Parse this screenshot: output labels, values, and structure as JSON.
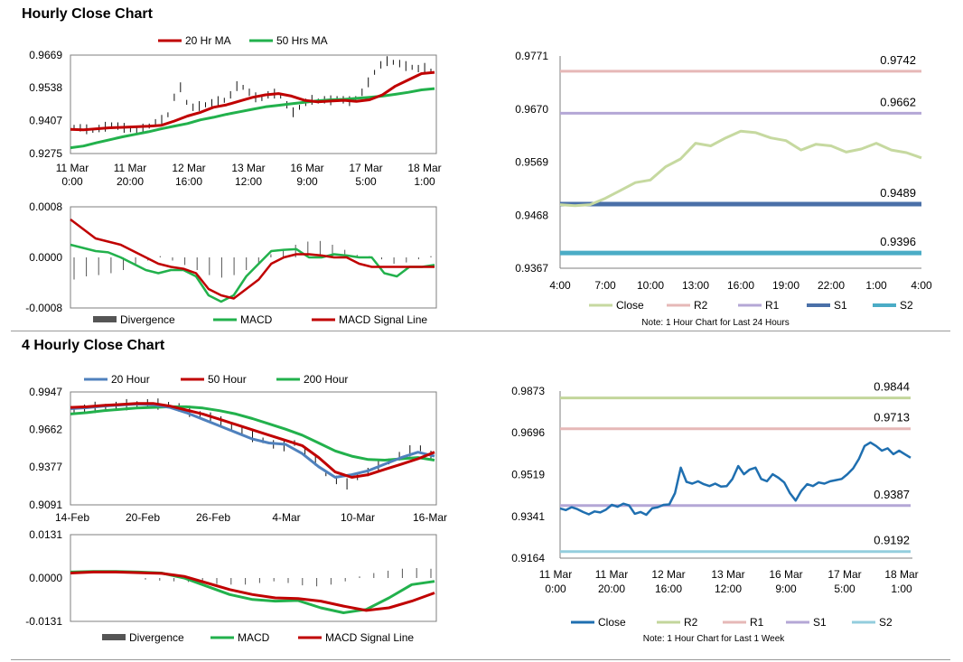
{
  "page": {
    "hourly_title": "Hourly Close Chart",
    "four_hourly_title": "4 Hourly Close Chart"
  },
  "colors": {
    "ma_red": "#c00000",
    "ma_green": "#22b14c",
    "ma_blue": "#4f81bd",
    "close_light": "#c6d9a0",
    "close_blue": "#1f6fb0",
    "r2_pink": "#e6b8b7",
    "r1_purple": "#b4a7d6",
    "s1_navy": "#4a70a8",
    "s2_teal": "#4bacc6",
    "r2_green": "#c3d69b",
    "s2_light": "#93cddd",
    "bars": "#555555",
    "axis": "#7f7f7f"
  },
  "chart_data": [
    {
      "id": "hourly_price",
      "type": "line",
      "ylim": [
        0.9275,
        0.9669
      ],
      "yticks": [
        "0.9669",
        "0.9538",
        "0.9407",
        "0.9275"
      ],
      "xticks": [
        [
          "11 Mar",
          "0:00"
        ],
        [
          "11 Mar",
          "20:00"
        ],
        [
          "12 Mar",
          "16:00"
        ],
        [
          "13 Mar",
          "12:00"
        ],
        [
          "16 Mar",
          "9:00"
        ],
        [
          "17 Mar",
          "5:00"
        ],
        [
          "18 Mar",
          "1:00"
        ]
      ],
      "legend": [
        "20 Hr MA",
        "50 Hrs MA"
      ],
      "price": [
        0.938,
        0.9378,
        0.9372,
        0.9368,
        0.9375,
        0.9382,
        0.939,
        0.9385,
        0.9378,
        0.937,
        0.9366,
        0.9375,
        0.9385,
        0.9398,
        0.941,
        0.943,
        0.95,
        0.954,
        0.948,
        0.946,
        0.9465,
        0.947,
        0.9478,
        0.9485,
        0.9488,
        0.951,
        0.9545,
        0.954,
        0.952,
        0.95,
        0.9495,
        0.951,
        0.9515,
        0.9505,
        0.947,
        0.944,
        0.946,
        0.948,
        0.949,
        0.9485,
        0.949,
        0.9488,
        0.9495,
        0.949,
        0.9485,
        0.9495,
        0.952,
        0.956,
        0.96,
        0.963,
        0.9645,
        0.964,
        0.9635,
        0.9625,
        0.962,
        0.9615,
        0.9618,
        0.9605
      ],
      "series": [
        {
          "name": "20 Hr MA",
          "values": [
            0.9372,
            0.937,
            0.9374,
            0.9378,
            0.938,
            0.9382,
            0.9384,
            0.9388,
            0.9405,
            0.9425,
            0.944,
            0.946,
            0.947,
            0.9485,
            0.95,
            0.951,
            0.9515,
            0.9505,
            0.9488,
            0.9482,
            0.9485,
            0.9488,
            0.9484,
            0.949,
            0.951,
            0.9545,
            0.957,
            0.9595,
            0.96
          ]
        },
        {
          "name": "50 Hrs MA",
          "values": [
            0.9298,
            0.9305,
            0.9318,
            0.933,
            0.9342,
            0.9352,
            0.9362,
            0.9374,
            0.9385,
            0.9395,
            0.941,
            0.942,
            0.9432,
            0.9442,
            0.9452,
            0.9462,
            0.9468,
            0.9474,
            0.948,
            0.9486,
            0.949,
            0.9492,
            0.9496,
            0.95,
            0.9505,
            0.9512,
            0.952,
            0.953,
            0.9535
          ]
        }
      ]
    },
    {
      "id": "hourly_macd",
      "type": "bar",
      "ylim": [
        -0.0008,
        0.0008
      ],
      "yticks": [
        "0.0008",
        "0.0000",
        "-0.0008"
      ],
      "legend": [
        "Divergence",
        "MACD",
        "MACD Signal Line"
      ],
      "divergence": [
        -0.00035,
        -0.0003,
        -0.00028,
        -0.00025,
        -0.0002,
        -0.00012,
        -5e-05,
        2e-05,
        -5e-05,
        -0.00012,
        -0.0002,
        -0.00028,
        -0.00032,
        -0.00028,
        -0.0002,
        -0.0001,
        5e-05,
        0.00012,
        0.0002,
        0.00025,
        0.00026,
        0.0002,
        0.00012,
        4e-05,
        2e-05,
        -3e-05,
        -0.0001,
        -8e-05,
        -3e-05,
        2e-05
      ],
      "series": [
        {
          "name": "MACD",
          "values": [
            0.0002,
            0.00015,
            0.0001,
            8e-05,
            0.0,
            -0.0001,
            -0.0002,
            -0.00025,
            -0.0002,
            -0.0002,
            -0.0003,
            -0.0006,
            -0.0007,
            -0.0006,
            -0.0003,
            -0.0001,
            0.0001,
            0.00012,
            0.00013,
            0.0,
            0.0,
            5e-05,
            3e-05,
            0.0,
            0.0,
            -0.00025,
            -0.0003,
            -0.00015,
            -0.00015,
            -0.00012
          ]
        },
        {
          "name": "MACD Signal Line",
          "values": [
            0.0006,
            0.00045,
            0.0003,
            0.00025,
            0.0002,
            0.0001,
            0.0,
            -0.0001,
            -0.00015,
            -0.00018,
            -0.00025,
            -0.0005,
            -0.0006,
            -0.00065,
            -0.0005,
            -0.00035,
            -0.0001,
            0.0,
            5e-05,
            5e-05,
            3e-05,
            0.0,
            0.0,
            -0.0001,
            -0.00015,
            -0.00015,
            -0.00015,
            -0.00015,
            -0.00015,
            -0.00015
          ]
        }
      ]
    },
    {
      "id": "hourly_levels",
      "type": "line",
      "ylim": [
        0.9367,
        0.9771
      ],
      "yticks": [
        "0.9771",
        "0.9670",
        "0.9569",
        "0.9468",
        "0.9367"
      ],
      "xticks": [
        "4:00",
        "7:00",
        "10:00",
        "13:00",
        "16:00",
        "19:00",
        "22:00",
        "1:00",
        "4:00"
      ],
      "note": "Note: 1 Hour Chart for Last 24 Hours",
      "legend": [
        "Close",
        "R2",
        "R1",
        "S1",
        "S2"
      ],
      "levels": [
        {
          "name": "R2",
          "value": 0.9742,
          "label": "0.9742"
        },
        {
          "name": "R1",
          "value": 0.9662,
          "label": "0.9662"
        },
        {
          "name": "S1",
          "value": 0.9489,
          "label": "0.9489"
        },
        {
          "name": "S2",
          "value": 0.9396,
          "label": "0.9396"
        }
      ],
      "close": [
        0.9488,
        0.9486,
        0.9488,
        0.95,
        0.9515,
        0.953,
        0.9535,
        0.956,
        0.9575,
        0.9605,
        0.96,
        0.9615,
        0.9628,
        0.9625,
        0.9615,
        0.961,
        0.9592,
        0.9603,
        0.96,
        0.9588,
        0.9594,
        0.9605,
        0.9592,
        0.9587,
        0.9577
      ]
    },
    {
      "id": "four_hourly_price",
      "type": "line",
      "ylim": [
        0.9091,
        0.9947
      ],
      "yticks": [
        "0.9947",
        "0.9662",
        "0.9377",
        "0.9091"
      ],
      "xticks": [
        "14-Feb",
        "20-Feb",
        "26-Feb",
        "4-Mar",
        "10-Mar",
        "16-Mar"
      ],
      "legend": [
        "20 Hour",
        "50 Hour",
        "200 Hour"
      ],
      "price": [
        0.981,
        0.982,
        0.983,
        0.9835,
        0.984,
        0.985,
        0.9855,
        0.986,
        0.9855,
        0.985,
        0.983,
        0.98,
        0.978,
        0.976,
        0.972,
        0.968,
        0.965,
        0.961,
        0.958,
        0.955,
        0.954,
        0.956,
        0.95,
        0.943,
        0.933,
        0.928,
        0.925,
        0.93,
        0.934,
        0.938,
        0.942,
        0.946,
        0.95,
        0.952,
        0.947
      ],
      "series": [
        {
          "name": "20 Hour",
          "values": [
            0.982,
            0.9828,
            0.984,
            0.9848,
            0.9855,
            0.985,
            0.983,
            0.979,
            0.974,
            0.969,
            0.964,
            0.959,
            0.956,
            0.955,
            0.948,
            0.938,
            0.93,
            0.932,
            0.935,
            0.94,
            0.945,
            0.949,
            0.946
          ]
        },
        {
          "name": "50 Hour",
          "values": [
            0.983,
            0.9835,
            0.9845,
            0.9852,
            0.986,
            0.986,
            0.984,
            0.981,
            0.978,
            0.974,
            0.97,
            0.966,
            0.962,
            0.958,
            0.954,
            0.945,
            0.934,
            0.93,
            0.932,
            0.936,
            0.94,
            0.944,
            0.949
          ]
        },
        {
          "name": "200 Hour",
          "values": [
            0.978,
            0.979,
            0.9805,
            0.9815,
            0.9825,
            0.983,
            0.9835,
            0.9835,
            0.9825,
            0.9805,
            0.978,
            0.9745,
            0.9705,
            0.9665,
            0.962,
            0.956,
            0.95,
            0.946,
            0.9435,
            0.943,
            0.944,
            0.945,
            0.943
          ]
        }
      ]
    },
    {
      "id": "four_hourly_macd",
      "type": "bar",
      "ylim": [
        -0.0131,
        0.0131
      ],
      "yticks": [
        "0.0131",
        "0.0000",
        "-0.0131"
      ],
      "legend": [
        "Divergence",
        "MACD",
        "MACD Signal Line"
      ],
      "divergence": [
        0.0,
        0.0,
        0.0,
        0.0,
        0.0,
        -0.0005,
        -0.0008,
        -0.001,
        -0.0012,
        -0.0015,
        -0.0018,
        -0.002,
        -0.002,
        -0.0015,
        -0.001,
        -0.0015,
        -0.0022,
        -0.0025,
        -0.002,
        -0.001,
        0.0005,
        0.0015,
        0.0022,
        0.0028,
        0.003,
        0.0028
      ],
      "series": [
        {
          "name": "MACD",
          "values": [
            0.0018,
            0.002,
            0.002,
            0.0018,
            0.0015,
            0.0,
            -0.0025,
            -0.005,
            -0.0065,
            -0.007,
            -0.0068,
            -0.009,
            -0.0105,
            -0.0095,
            -0.006,
            -0.002,
            -0.001
          ]
        },
        {
          "name": "MACD Signal Line",
          "values": [
            0.0015,
            0.0018,
            0.0018,
            0.0016,
            0.0014,
            0.0005,
            -0.0015,
            -0.0035,
            -0.005,
            -0.006,
            -0.0062,
            -0.007,
            -0.0085,
            -0.0098,
            -0.009,
            -0.007,
            -0.0045
          ]
        }
      ]
    },
    {
      "id": "weekly_levels",
      "type": "line",
      "ylim": [
        0.9164,
        0.9873
      ],
      "yticks": [
        "0.9873",
        "0.9696",
        "0.9519",
        "0.9341",
        "0.9164"
      ],
      "xticks": [
        [
          "11 Mar",
          "0:00"
        ],
        [
          "11 Mar",
          "20:00"
        ],
        [
          "12 Mar",
          "16:00"
        ],
        [
          "13 Mar",
          "12:00"
        ],
        [
          "16 Mar",
          "9:00"
        ],
        [
          "17 Mar",
          "5:00"
        ],
        [
          "18 Mar",
          "1:00"
        ]
      ],
      "note": "Note: 1 Hour Chart for Last 1 Week",
      "legend": [
        "Close",
        "R2",
        "R1",
        "S1",
        "S2"
      ],
      "levels": [
        {
          "name": "R2",
          "value": 0.9844,
          "label": "0.9844"
        },
        {
          "name": "R1",
          "value": 0.9713,
          "label": "0.9713"
        },
        {
          "name": "S1",
          "value": 0.9387,
          "label": "0.9387"
        },
        {
          "name": "S2",
          "value": 0.9192,
          "label": "0.9192"
        }
      ],
      "close": [
        0.9375,
        0.9368,
        0.938,
        0.9372,
        0.936,
        0.935,
        0.9362,
        0.9358,
        0.937,
        0.939,
        0.9382,
        0.9395,
        0.9388,
        0.9352,
        0.936,
        0.9348,
        0.9375,
        0.938,
        0.939,
        0.9392,
        0.944,
        0.9548,
        0.9488,
        0.948,
        0.949,
        0.9478,
        0.947,
        0.948,
        0.9468,
        0.947,
        0.95,
        0.9555,
        0.952,
        0.954,
        0.9548,
        0.95,
        0.949,
        0.952,
        0.9505,
        0.9485,
        0.944,
        0.9408,
        0.945,
        0.9478,
        0.947,
        0.9485,
        0.948,
        0.949,
        0.9495,
        0.95,
        0.952,
        0.9545,
        0.9585,
        0.964,
        0.9655,
        0.964,
        0.962,
        0.963,
        0.9605,
        0.962,
        0.9605,
        0.959
      ]
    }
  ]
}
